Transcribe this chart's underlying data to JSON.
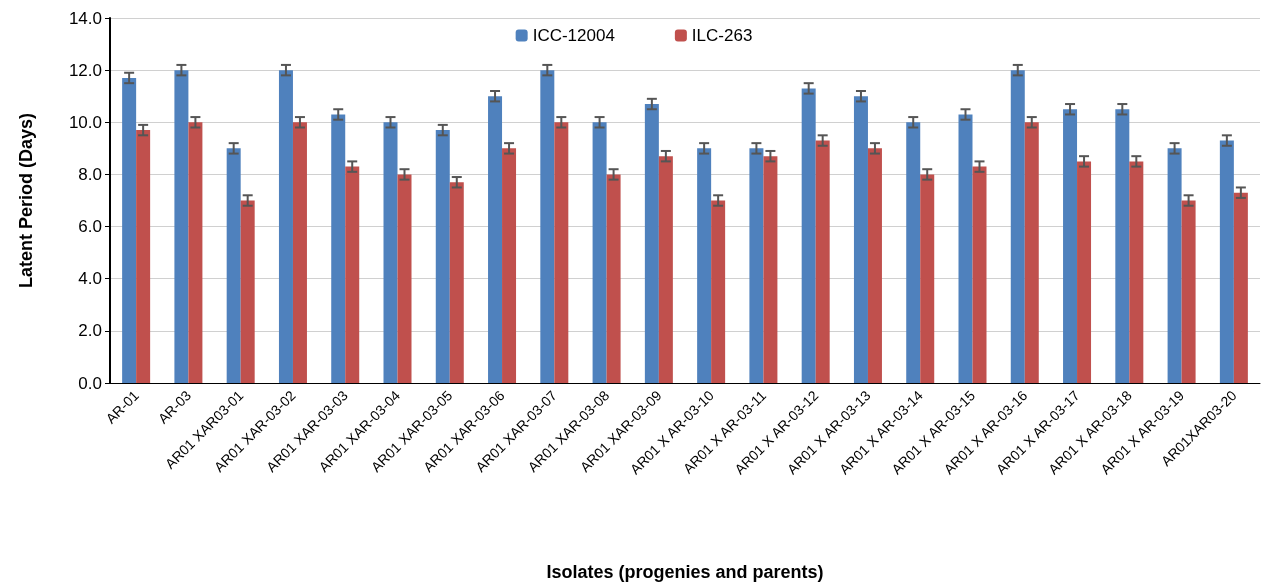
{
  "chart_data": {
    "type": "bar",
    "xlabel": "Isolates (progenies and parents)",
    "ylabel": "Latent Period (Days)",
    "categories": [
      "AR-01",
      "AR-03",
      "AR01 XAR03-01",
      "AR01 XAR-03-02",
      "AR01 XAR-03-03",
      "AR01 XAR-03-04",
      "AR01 XAR-03-05",
      "AR01 XAR-03-06",
      "AR01 XAR-03-07",
      "AR01 XAR-03-08",
      "AR01 XAR-03-09",
      "AR01 X AR-03-10",
      "AR01 X AR-03-11",
      "AR01 X AR-03-12",
      "AR01 X AR-03-13",
      "AR01 X AR-03-14",
      "AR01 X AR-03-15",
      "AR01 X AR-03-16",
      "AR01 X AR-03-17",
      "AR01 X AR-03-18",
      "AR01 X AR-03-19",
      "AR01XAR03-20"
    ],
    "series": [
      {
        "name": "ICC-12004",
        "color": "#4f81bd",
        "values": [
          11.7,
          12,
          9,
          12,
          10.3,
          10,
          9.7,
          11,
          12,
          10,
          10.7,
          9,
          9,
          11.3,
          11,
          10,
          10.3,
          12,
          10.5,
          10.5,
          9,
          9.3
        ],
        "errors": [
          0.2,
          0.2,
          0.2,
          0.2,
          0.2,
          0.2,
          0.2,
          0.2,
          0.2,
          0.2,
          0.2,
          0.2,
          0.2,
          0.2,
          0.2,
          0.2,
          0.2,
          0.2,
          0.2,
          0.2,
          0.2,
          0.2
        ]
      },
      {
        "name": "ILC-263",
        "color": "#c0504d",
        "values": [
          9.7,
          10,
          7,
          10,
          8.3,
          8,
          7.7,
          9,
          10,
          8,
          8.7,
          7,
          8.7,
          9.3,
          9,
          8,
          8.3,
          10,
          8.5,
          8.5,
          7,
          7.3
        ],
        "errors": [
          0.2,
          0.2,
          0.2,
          0.2,
          0.2,
          0.2,
          0.2,
          0.2,
          0.2,
          0.2,
          0.2,
          0.2,
          0.2,
          0.2,
          0.2,
          0.2,
          0.2,
          0.2,
          0.2,
          0.2,
          0.2,
          0.2
        ]
      }
    ],
    "ylim": [
      0,
      14
    ],
    "yticks": [
      {
        "value": 0,
        "label": "0.0"
      },
      {
        "value": 2,
        "label": "2.0"
      },
      {
        "value": 4,
        "label": "4.0"
      },
      {
        "value": 6,
        "label": "6.0"
      },
      {
        "value": 8,
        "label": "8.0"
      },
      {
        "value": 10,
        "label": "10.0"
      },
      {
        "value": 12,
        "label": "12.0"
      },
      {
        "value": 14,
        "label": "14.0"
      }
    ],
    "grid": "y",
    "legend": "top"
  }
}
